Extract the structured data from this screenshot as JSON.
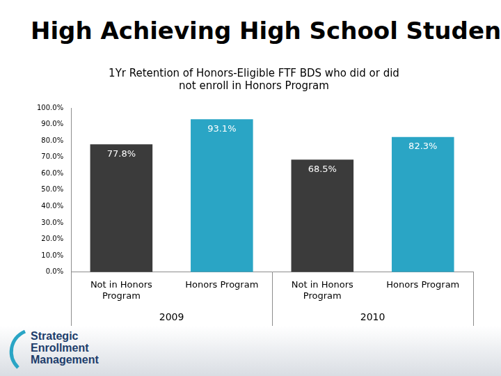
{
  "heading": "High Achieving High School Students",
  "logo": [
    "Strategic",
    "Enrollment",
    "Management"
  ],
  "chart_data": {
    "type": "bar",
    "title": "1Yr Retention of Honors-Eligible FTF BDS who did or did not enroll in Honors Program",
    "categories": [
      "Not in Honors Program",
      "Honors Program",
      "Not in Honors Program",
      "Honors Program"
    ],
    "category_groups": [
      {
        "label": "2009",
        "count": 2
      },
      {
        "label": "2010",
        "count": 2
      }
    ],
    "values": [
      77.8,
      93.1,
      68.5,
      82.3
    ],
    "value_labels": [
      "77.8%",
      "93.1%",
      "68.5%",
      "82.3%"
    ],
    "colors": [
      "#3b3b3b",
      "#2aa5c5",
      "#3b3b3b",
      "#2aa5c5"
    ],
    "ylim": [
      0,
      100
    ],
    "yticks": [
      {
        "value": 0,
        "label": "0.0%"
      },
      {
        "value": 10,
        "label": "10.0%"
      },
      {
        "value": 20,
        "label": "20.0%"
      },
      {
        "value": 30,
        "label": "30.0%"
      },
      {
        "value": 40,
        "label": "40.0%"
      },
      {
        "value": 50,
        "label": "50.0%"
      },
      {
        "value": 60,
        "label": "60.0%"
      },
      {
        "value": 70,
        "label": "70.0%"
      },
      {
        "value": 80,
        "label": "80.0%"
      },
      {
        "value": 90,
        "label": "90.0%"
      },
      {
        "value": 100,
        "label": "100.0%"
      }
    ],
    "grid": false,
    "data_labels": true
  }
}
